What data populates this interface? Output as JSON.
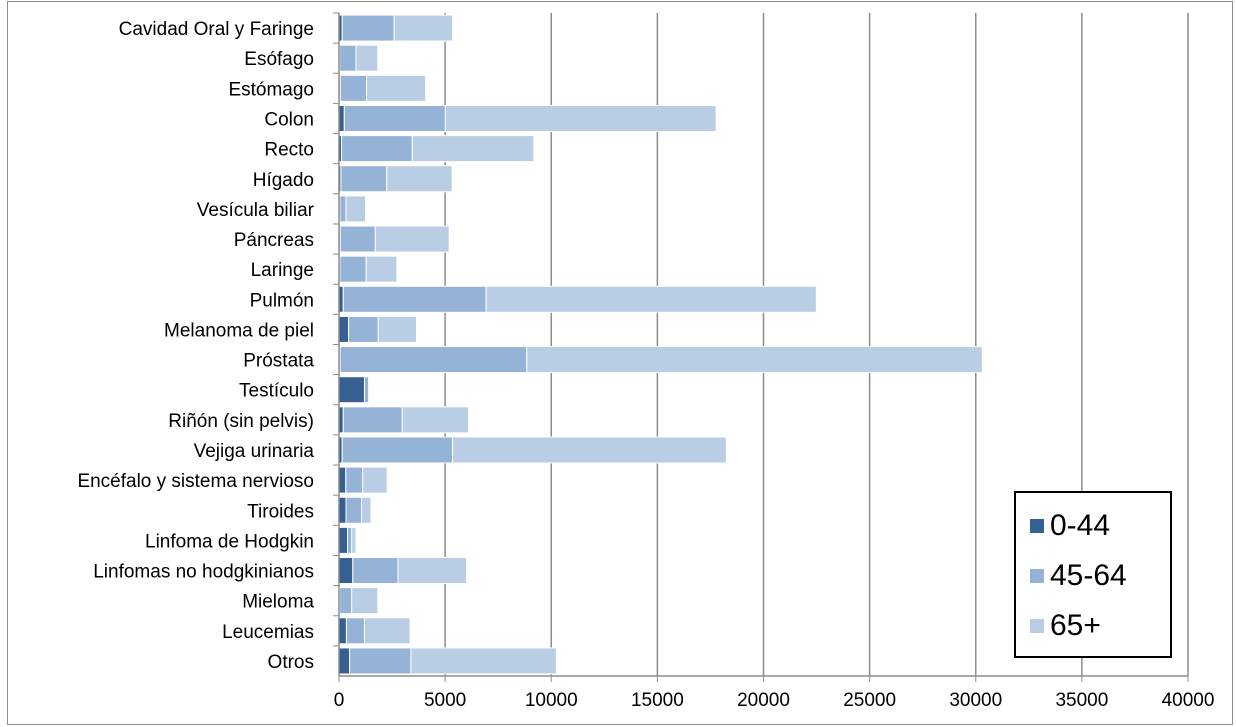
{
  "chart_data": {
    "type": "bar",
    "orientation": "horizontal",
    "stacked": true,
    "categories": [
      "Cavidad Oral y Faringe",
      "Esófago",
      "Estómago",
      "Colon",
      "Recto",
      "Hígado",
      "Vesícula biliar",
      "Páncreas",
      "Laringe",
      "Pulmón",
      "Melanoma de piel",
      "Próstata",
      "Testículo",
      "Riñón (sin pelvis)",
      "Vejiga urinaria",
      "Encéfalo y sistema nervioso",
      "Tiroides",
      "Linfoma de Hodgkin",
      "Linfomas no hodgkinianos",
      "Mieloma",
      "Leucemias",
      "Otros"
    ],
    "series": [
      {
        "name": "0-44",
        "color": "#376092",
        "values": [
          150,
          30,
          60,
          250,
          120,
          90,
          40,
          60,
          40,
          200,
          450,
          50,
          1200,
          200,
          150,
          320,
          330,
          400,
          650,
          30,
          350,
          500
        ]
      },
      {
        "name": "45-64",
        "color": "#95b3d7",
        "values": [
          2450,
          770,
          1240,
          4760,
          3330,
          2160,
          290,
          1650,
          1240,
          6730,
          1400,
          8800,
          200,
          2780,
          5200,
          800,
          730,
          200,
          2130,
          570,
          850,
          2890
        ]
      },
      {
        "name": "65+",
        "color": "#b9cde5",
        "values": [
          2750,
          1030,
          2780,
          12760,
          5730,
          3080,
          920,
          3480,
          1450,
          15560,
          1800,
          21460,
          50,
          3120,
          12900,
          1150,
          450,
          200,
          3230,
          1230,
          2150,
          6850
        ]
      }
    ],
    "xlim": [
      0,
      40000
    ],
    "xticks": [
      "0",
      "5000",
      "10000",
      "15000",
      "20000",
      "25000",
      "30000",
      "35000",
      "40000"
    ],
    "grid": true,
    "legend_position": "bottom-right"
  }
}
